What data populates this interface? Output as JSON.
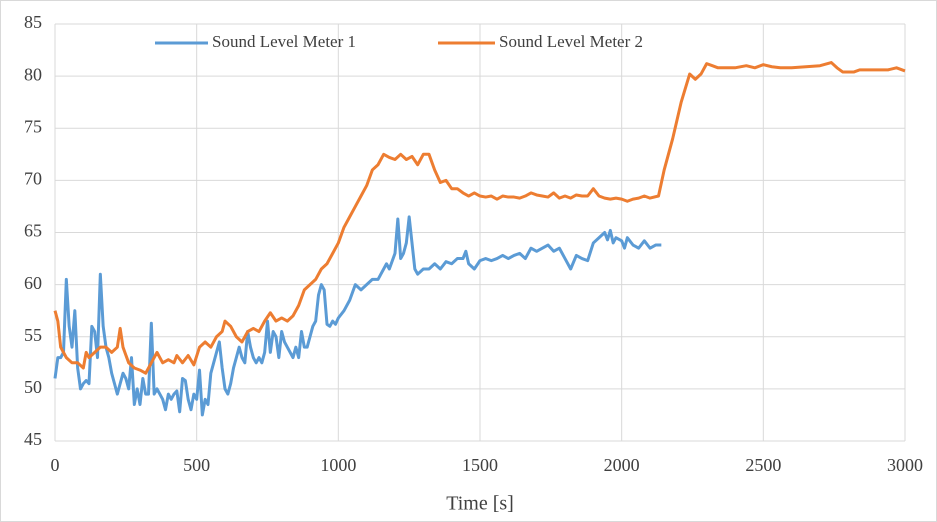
{
  "chart_data": {
    "type": "line",
    "x_label": "Time [s]",
    "grid": true,
    "legend": "top",
    "xlim": [
      0,
      3000
    ],
    "xticks": [
      0,
      500,
      1000,
      1500,
      2000,
      2500,
      3000
    ],
    "ylim": [
      45,
      85
    ],
    "yticks": [
      45,
      50,
      55,
      60,
      65,
      70,
      75,
      80,
      85
    ],
    "series": [
      {
        "name": "Sound Level Meter 1",
        "color": "#5b9bd5",
        "x": [
          0,
          10,
          20,
          30,
          40,
          50,
          60,
          70,
          80,
          90,
          100,
          110,
          120,
          130,
          140,
          150,
          160,
          170,
          180,
          190,
          200,
          210,
          220,
          230,
          240,
          250,
          260,
          270,
          280,
          290,
          300,
          310,
          320,
          330,
          340,
          350,
          360,
          370,
          380,
          390,
          400,
          410,
          420,
          430,
          440,
          450,
          460,
          470,
          480,
          490,
          500,
          510,
          520,
          530,
          540,
          550,
          560,
          570,
          580,
          590,
          600,
          610,
          620,
          630,
          640,
          650,
          660,
          670,
          680,
          690,
          700,
          710,
          720,
          730,
          740,
          750,
          760,
          770,
          780,
          790,
          800,
          810,
          820,
          830,
          840,
          850,
          860,
          870,
          880,
          890,
          900,
          910,
          920,
          930,
          940,
          950,
          960,
          970,
          980,
          990,
          1000,
          1020,
          1040,
          1060,
          1080,
          1100,
          1120,
          1140,
          1160,
          1170,
          1180,
          1200,
          1210,
          1220,
          1230,
          1240,
          1250,
          1260,
          1270,
          1280,
          1300,
          1320,
          1340,
          1360,
          1380,
          1400,
          1420,
          1440,
          1450,
          1460,
          1480,
          1500,
          1520,
          1540,
          1560,
          1580,
          1600,
          1620,
          1640,
          1660,
          1680,
          1700,
          1720,
          1740,
          1760,
          1780,
          1800,
          1820,
          1840,
          1860,
          1880,
          1900,
          1920,
          1940,
          1950,
          1960,
          1970,
          1980,
          2000,
          2010,
          2020,
          2040,
          2060,
          2080,
          2100,
          2120,
          2140
        ],
        "values": [
          51,
          53,
          53,
          53.5,
          60.5,
          56,
          54,
          57.5,
          52,
          50,
          50.5,
          50.8,
          50.5,
          56,
          55.5,
          53,
          61,
          56,
          54,
          53,
          51.5,
          50.5,
          49.5,
          50.5,
          51.5,
          51,
          50,
          53,
          48.5,
          50,
          48.5,
          51,
          49.5,
          49.5,
          56.3,
          49.5,
          50,
          49.5,
          49,
          48,
          49.5,
          49,
          49.5,
          49.8,
          47.8,
          51,
          50.8,
          49,
          48,
          49.5,
          49,
          51.8,
          47.5,
          49,
          48.5,
          51.5,
          52.5,
          53.5,
          54.5,
          52,
          50,
          49.5,
          50.5,
          52,
          53,
          54,
          53,
          52.5,
          55.5,
          54,
          53,
          52.5,
          53,
          52.5,
          53.5,
          56.5,
          53.5,
          55.5,
          55,
          53,
          55.5,
          54.5,
          54,
          53.5,
          53,
          54,
          53,
          55.5,
          54,
          54,
          55,
          56,
          56.5,
          59,
          60,
          59.5,
          56.2,
          56,
          56.5,
          56.2,
          56.8,
          57.5,
          58.5,
          60,
          59.5,
          60,
          60.5,
          60.5,
          61.5,
          62,
          61.5,
          63,
          66.3,
          62.5,
          63,
          64,
          66.5,
          64,
          61.5,
          61,
          61.5,
          61.5,
          62,
          61.5,
          62.2,
          62,
          62.5,
          62.5,
          63.2,
          62,
          61.5,
          62.3,
          62.5,
          62.3,
          62.5,
          62.8,
          62.5,
          62.8,
          63,
          62.5,
          63.5,
          63.2,
          63.5,
          63.8,
          63.2,
          63.5,
          62.5,
          61.5,
          62.8,
          62.5,
          62.3,
          64,
          64.5,
          65,
          64.3,
          65.2,
          64,
          64.5,
          64.2,
          63.5,
          64.5,
          63.8,
          63.5,
          64.2,
          63.5,
          63.8,
          63.8
        ]
      },
      {
        "name": "Sound Level Meter 2",
        "color": "#ed7d31",
        "x": [
          0,
          10,
          20,
          30,
          40,
          60,
          80,
          100,
          110,
          120,
          140,
          160,
          180,
          200,
          220,
          230,
          240,
          260,
          280,
          300,
          320,
          340,
          360,
          380,
          400,
          420,
          430,
          450,
          470,
          490,
          510,
          530,
          550,
          570,
          590,
          600,
          620,
          640,
          660,
          680,
          700,
          720,
          740,
          760,
          780,
          800,
          820,
          840,
          860,
          880,
          900,
          920,
          940,
          960,
          980,
          1000,
          1020,
          1040,
          1060,
          1080,
          1100,
          1120,
          1140,
          1160,
          1180,
          1200,
          1220,
          1240,
          1260,
          1280,
          1300,
          1320,
          1340,
          1360,
          1380,
          1400,
          1420,
          1440,
          1460,
          1480,
          1500,
          1520,
          1540,
          1560,
          1580,
          1600,
          1620,
          1640,
          1660,
          1680,
          1700,
          1720,
          1740,
          1760,
          1780,
          1800,
          1820,
          1840,
          1860,
          1880,
          1900,
          1920,
          1940,
          1960,
          1980,
          2000,
          2020,
          2040,
          2060,
          2080,
          2100,
          2130,
          2150,
          2180,
          2210,
          2240,
          2260,
          2280,
          2300,
          2320,
          2340,
          2360,
          2400,
          2440,
          2470,
          2500,
          2530,
          2560,
          2600,
          2650,
          2700,
          2740,
          2760,
          2780,
          2820,
          2840,
          2870,
          2900,
          2940,
          2970,
          3000
        ],
        "values": [
          57.5,
          56.5,
          54,
          53.5,
          53,
          52.5,
          52.5,
          52,
          53.5,
          53,
          53.5,
          54,
          54,
          53.5,
          54,
          55.8,
          54,
          52.5,
          52,
          51.8,
          51.5,
          52.5,
          53.5,
          52.5,
          52.8,
          52.5,
          53.2,
          52.5,
          53.2,
          52.3,
          54,
          54.5,
          54,
          55,
          55.5,
          56.5,
          56,
          55,
          54.5,
          55.5,
          55.8,
          55.5,
          56.5,
          57.3,
          56.5,
          56.8,
          56.5,
          57,
          58,
          59.5,
          60,
          60.5,
          61.5,
          62,
          63,
          64,
          65.5,
          66.5,
          67.5,
          68.5,
          69.5,
          71,
          71.5,
          72.5,
          72.2,
          72,
          72.5,
          72,
          72.3,
          71.5,
          72.5,
          72.5,
          71,
          69.8,
          70,
          69.2,
          69.2,
          68.8,
          68.5,
          68.8,
          68.5,
          68.4,
          68.5,
          68.2,
          68.5,
          68.4,
          68.4,
          68.3,
          68.5,
          68.8,
          68.6,
          68.5,
          68.4,
          68.8,
          68.3,
          68.5,
          68.3,
          68.6,
          68.5,
          68.5,
          69.2,
          68.5,
          68.3,
          68.2,
          68.3,
          68.2,
          68,
          68.2,
          68.3,
          68.5,
          68.3,
          68.5,
          71,
          74,
          77.5,
          80.2,
          79.7,
          80.2,
          81.2,
          81,
          80.8,
          80.8,
          80.8,
          81,
          80.8,
          81.1,
          80.9,
          80.8,
          80.8,
          80.9,
          81,
          81.3,
          80.8,
          80.4,
          80.4,
          80.6,
          80.6,
          80.6,
          80.6,
          80.8,
          80.5
        ]
      }
    ]
  }
}
